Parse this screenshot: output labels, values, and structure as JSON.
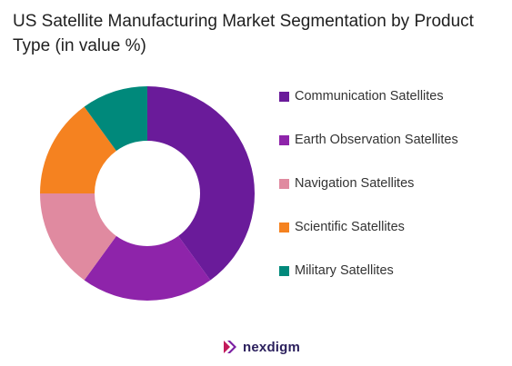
{
  "chart_data": {
    "type": "pie",
    "title": "US Satellite Manufacturing Market Segmentation by Product Type (in value %)",
    "categories": [
      "Communication Satellites",
      "Earth Observation Satellites",
      "Navigation Satellites",
      "Scientific Satellites",
      "Military Satellites"
    ],
    "values": [
      40,
      20,
      15,
      15,
      10
    ],
    "colors": [
      "#6a1b9a",
      "#8e24aa",
      "#e08aa0",
      "#f58220",
      "#00897b"
    ],
    "donut": true,
    "legend_position": "right"
  },
  "brand": {
    "name": "nexdigm",
    "icon": "nexdigm-logo-icon"
  }
}
